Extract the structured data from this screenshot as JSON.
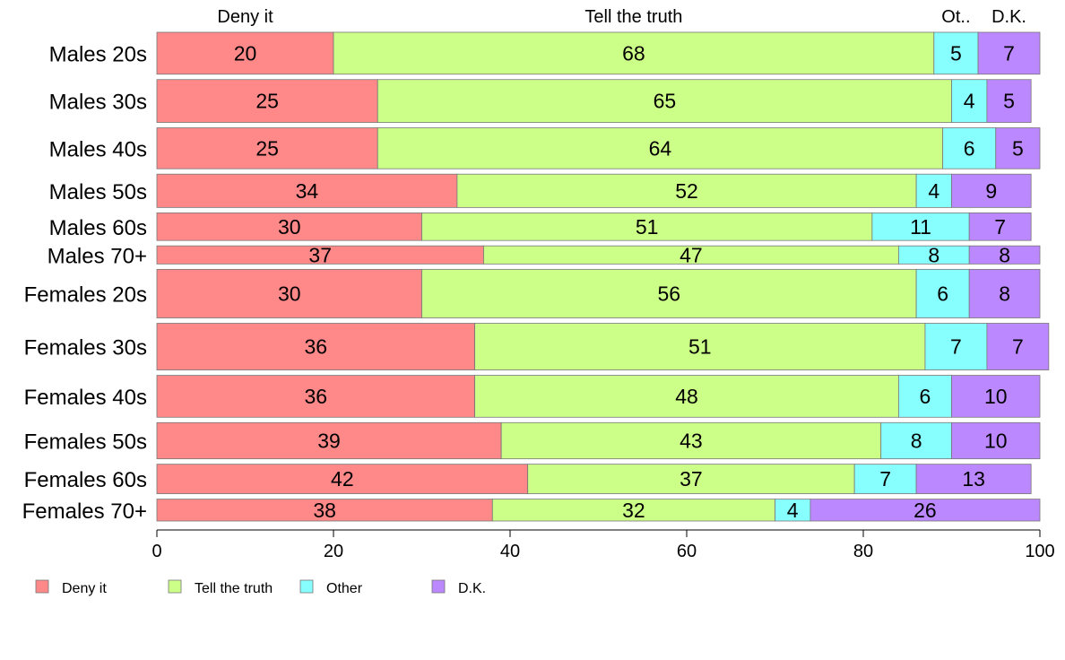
{
  "chart_data": {
    "type": "bar",
    "orientation": "horizontal",
    "stacked": true,
    "variable_width": true,
    "categories": [
      "Males 20s",
      "Males 30s",
      "Males 40s",
      "Males 50s",
      "Males 60s",
      "Males 70+",
      "Females 20s",
      "Females 30s",
      "Females 40s",
      "Females 50s",
      "Females 60s",
      "Females 70+"
    ],
    "series": [
      {
        "name": "Deny it",
        "color": "#ff8888",
        "values": [
          20,
          25,
          25,
          34,
          30,
          37,
          30,
          36,
          36,
          39,
          42,
          38
        ]
      },
      {
        "name": "Tell the truth",
        "color": "#ccff88",
        "values": [
          68,
          65,
          64,
          52,
          51,
          47,
          56,
          51,
          48,
          43,
          37,
          32
        ]
      },
      {
        "name": "Other",
        "color": "#88ffff",
        "values": [
          5,
          4,
          6,
          4,
          11,
          8,
          6,
          7,
          6,
          8,
          7,
          4
        ]
      },
      {
        "name": "D.K.",
        "color": "#bb88ff",
        "values": [
          7,
          5,
          5,
          9,
          7,
          8,
          8,
          7,
          10,
          10,
          13,
          26
        ]
      }
    ],
    "top_labels": [
      "Deny it",
      "Tell the truth",
      "Ot..",
      "D.K."
    ],
    "xlim": [
      0,
      100
    ],
    "xticks": [
      0,
      20,
      40,
      60,
      80,
      100
    ],
    "xlabel": "",
    "ylabel": "",
    "title": "",
    "grid": false,
    "legend": {
      "position": "bottom-left",
      "entries": [
        "Deny it",
        "Tell the truth",
        "Other",
        "D.K."
      ]
    }
  }
}
